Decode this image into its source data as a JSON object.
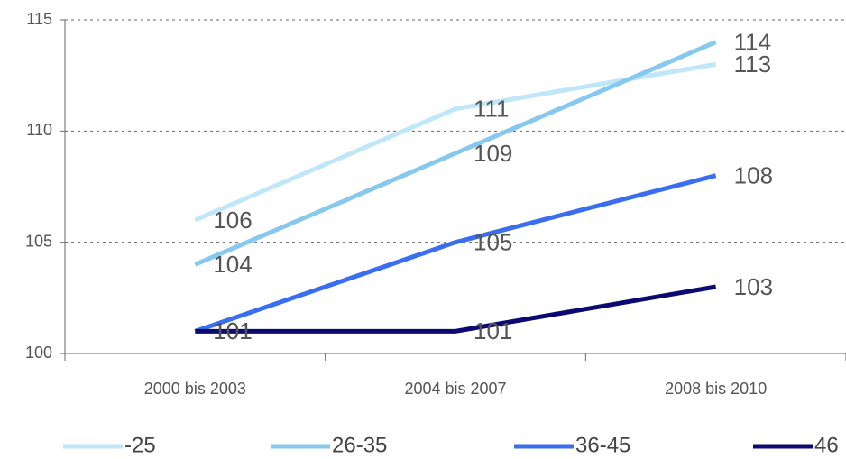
{
  "chart_data": {
    "type": "line",
    "categories": [
      "2000 bis 2003",
      "2004 bis 2007",
      "2008 bis 2010"
    ],
    "series": [
      {
        "name": "-25",
        "color": "#bfe6f9",
        "values": [
          106,
          111,
          113
        ]
      },
      {
        "name": "26-35",
        "color": "#87c9ee",
        "values": [
          104,
          109,
          114
        ]
      },
      {
        "name": "36-45",
        "color": "#3a6ef0",
        "values": [
          101,
          105,
          108
        ]
      },
      {
        "name": "46",
        "color": "#0a0a70",
        "values": [
          101,
          101,
          103
        ]
      }
    ],
    "ylim": [
      100,
      115
    ],
    "yticks": [
      100,
      105,
      110,
      115
    ],
    "grid": true,
    "legend": "bottom"
  }
}
